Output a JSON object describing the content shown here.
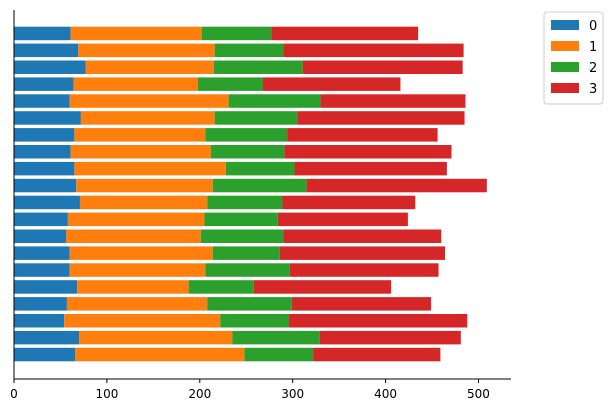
{
  "chart_data": {
    "type": "bar",
    "orientation": "horizontal",
    "stacked": true,
    "title": "",
    "xlabel": "",
    "ylabel": "",
    "xlim": [
      0,
      535
    ],
    "x_ticks": [
      0,
      100,
      200,
      300,
      400,
      500
    ],
    "grid": false,
    "legend_position": "top-right",
    "series": [
      {
        "name": "0",
        "color": "#1f77b4",
        "values": [
          66,
          70,
          54,
          57,
          68,
          60,
          60,
          56,
          58,
          71,
          67,
          65,
          61,
          65,
          72,
          60,
          64,
          77,
          69,
          61
        ]
      },
      {
        "name": "1",
        "color": "#ff7f0e",
        "values": [
          182,
          165,
          168,
          151,
          120,
          146,
          154,
          145,
          147,
          137,
          147,
          163,
          151,
          141,
          144,
          171,
          134,
          138,
          147,
          141
        ]
      },
      {
        "name": "2",
        "color": "#2ca02c",
        "values": [
          74,
          94,
          74,
          91,
          70,
          91,
          72,
          89,
          79,
          81,
          101,
          74,
          79,
          88,
          89,
          99,
          70,
          96,
          74,
          75
        ]
      },
      {
        "name": "3",
        "color": "#d62728",
        "values": [
          137,
          152,
          192,
          150,
          148,
          160,
          178,
          170,
          140,
          143,
          194,
          164,
          180,
          162,
          180,
          156,
          148,
          172,
          194,
          158
        ]
      }
    ]
  }
}
